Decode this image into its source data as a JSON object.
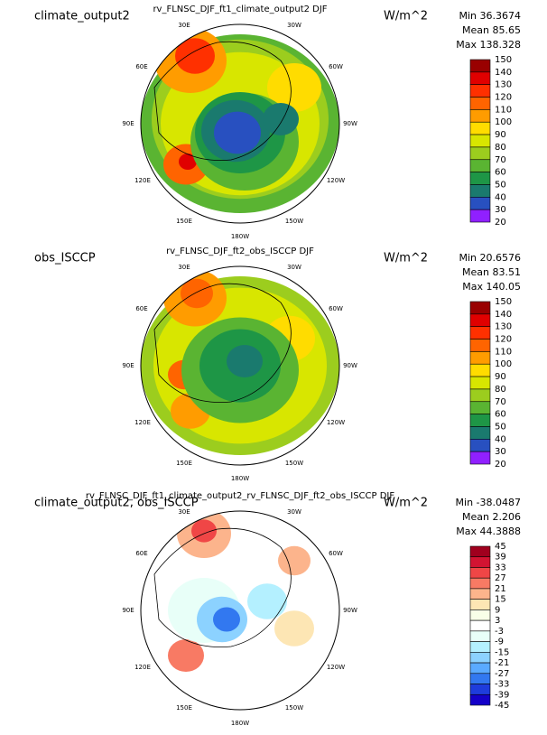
{
  "panels": [
    {
      "left_title": "climate_output2",
      "center_title": "rv_FLNSC_DJF_ft1_climate_output2  DJF",
      "units": "W/m^2",
      "stats": [
        "Min 36.3674",
        "Mean 85.65",
        "Max 138.328"
      ],
      "colorbar": {
        "labels": [
          150,
          140,
          130,
          120,
          110,
          100,
          90,
          80,
          70,
          60,
          50,
          40,
          30,
          20
        ],
        "colors": [
          "#990000",
          "#e00000",
          "#ff3000",
          "#ff6400",
          "#ff9c00",
          "#ffdc00",
          "#d8e600",
          "#9ccd1e",
          "#5ab432",
          "#1e9646",
          "#1a7a6e",
          "#2850c0",
          "#9020ff"
        ]
      },
      "lon_labels": [
        "30E",
        "30W",
        "60E",
        "60W",
        "90E",
        "90W",
        "120E",
        "120W",
        "150E",
        "150W",
        "180W"
      ]
    },
    {
      "left_title": "obs_ISCCP",
      "center_title": "rv_FLNSC_DJF_ft2_obs_ISCCP  DJF",
      "units": "W/m^2",
      "stats": [
        "Min 20.6576",
        "Mean 83.51",
        "Max 140.05"
      ],
      "colorbar": {
        "labels": [
          150,
          140,
          130,
          120,
          110,
          100,
          90,
          80,
          70,
          60,
          50,
          40,
          30,
          20
        ],
        "colors": [
          "#990000",
          "#e00000",
          "#ff3000",
          "#ff6400",
          "#ff9c00",
          "#ffdc00",
          "#d8e600",
          "#9ccd1e",
          "#5ab432",
          "#1e9646",
          "#1a7a6e",
          "#2850c0",
          "#9020ff"
        ]
      },
      "lon_labels": [
        "30E",
        "30W",
        "60E",
        "60W",
        "90E",
        "90W",
        "120E",
        "120W",
        "150E",
        "150W",
        "180W"
      ]
    },
    {
      "left_title": "climate_output2, obs_ISCCP",
      "center_title": "rv_FLNSC_DJF_ft1_climate_output2_rv_FLNSC_DJF_ft2_obs_ISCCP  DJF",
      "units": "W/m^2",
      "stats": [
        "Min -38.0487",
        "Mean 2.206",
        "Max 44.3888"
      ],
      "colorbar": {
        "labels": [
          45,
          39,
          33,
          27,
          21,
          15,
          9,
          3,
          -3,
          -9,
          -15,
          -21,
          -27,
          -33,
          -39,
          -45
        ],
        "colors": [
          "#a0001e",
          "#d21432",
          "#f04646",
          "#f87a64",
          "#fcb48c",
          "#fde6b4",
          "#f8ffe8",
          "#ffffff",
          "#e8fff8",
          "#b4f0ff",
          "#8cd2ff",
          "#5aaaff",
          "#3278f0",
          "#1e3cdc",
          "#1400c8"
        ]
      },
      "lon_labels": [
        "30E",
        "30W",
        "60E",
        "60W",
        "90E",
        "90W",
        "120E",
        "120W",
        "150E",
        "150W",
        "180W"
      ]
    }
  ]
}
